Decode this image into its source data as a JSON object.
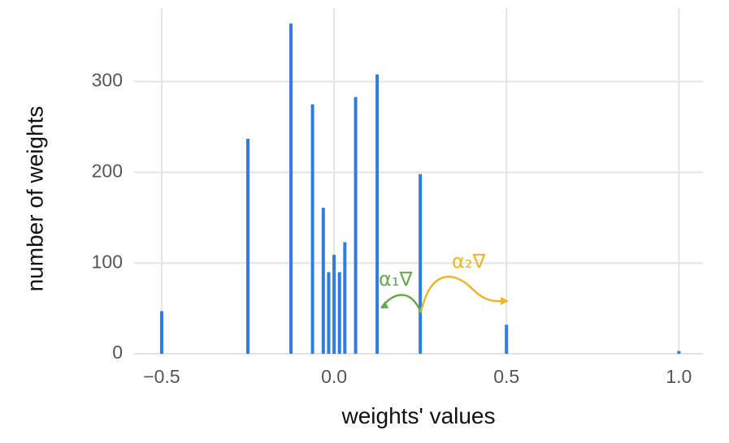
{
  "chart_data": {
    "type": "bar",
    "x_label": "weights' values",
    "y_label": "number of weights",
    "x": [
      -0.5,
      -0.25,
      -0.125,
      -0.0625,
      -0.03125,
      -0.015625,
      0,
      0.015625,
      0.03125,
      0.0625,
      0.125,
      0.25,
      0.5,
      1.0
    ],
    "values": [
      47,
      237,
      364,
      275,
      161,
      90,
      109,
      90,
      123,
      283,
      308,
      198,
      32,
      3
    ],
    "color": "#2f7de1",
    "xlim": [
      -0.58,
      1.07
    ],
    "ylim": [
      0,
      390
    ],
    "xticks": [
      {
        "value": -0.5,
        "label": "−0.5"
      },
      {
        "value": 0,
        "label": "0.0"
      },
      {
        "value": 0.5,
        "label": "0.5"
      },
      {
        "value": 1.0,
        "label": "1.0"
      }
    ],
    "yticks": [
      0,
      100,
      200,
      300
    ],
    "grid": true,
    "annotations": [
      {
        "text": "α₁∇",
        "color": "#6aa84f"
      },
      {
        "text": "α₂∇",
        "color": "#e8b82a"
      }
    ]
  }
}
